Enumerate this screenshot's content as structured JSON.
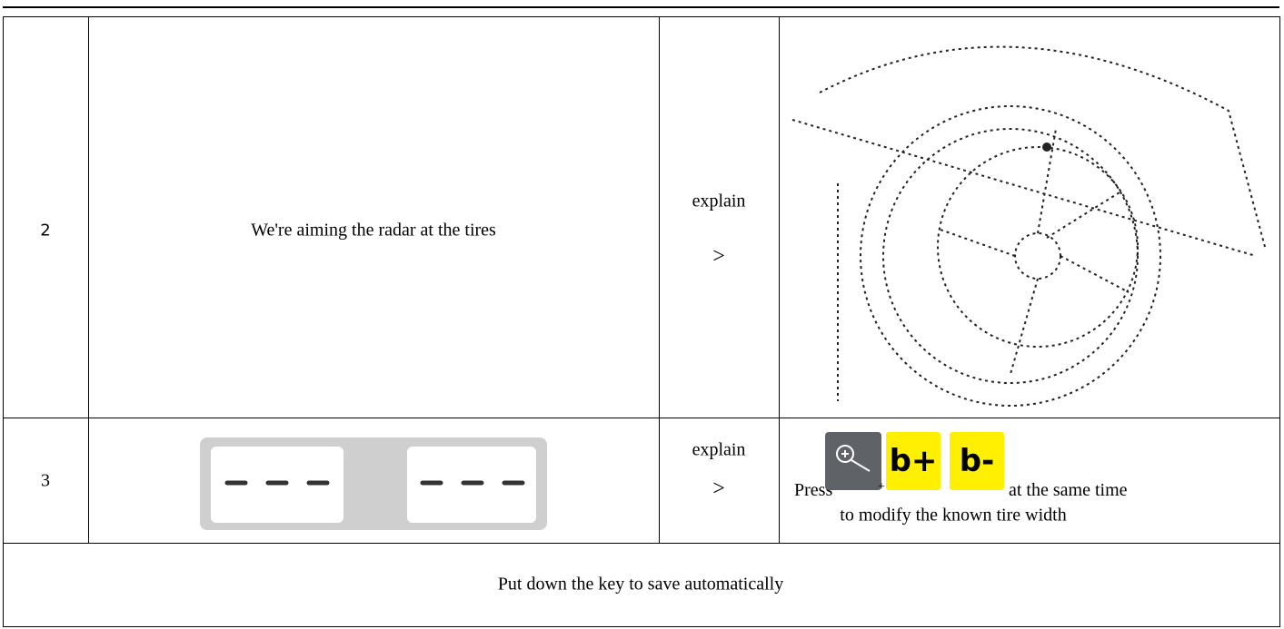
{
  "rows": [
    {
      "number": "2",
      "description": "We're aiming the radar at the tires",
      "action": [
        "explain",
        ">"
      ]
    },
    {
      "number": "3",
      "action": [
        "explain",
        ">"
      ],
      "instruction": {
        "before": "Press",
        "plus": "+",
        "keys": [
          "b+",
          "b-"
        ],
        "after": "at the same time",
        "line2": "to modify the known tire width"
      }
    }
  ],
  "footer": "Put down the key to save automatically"
}
